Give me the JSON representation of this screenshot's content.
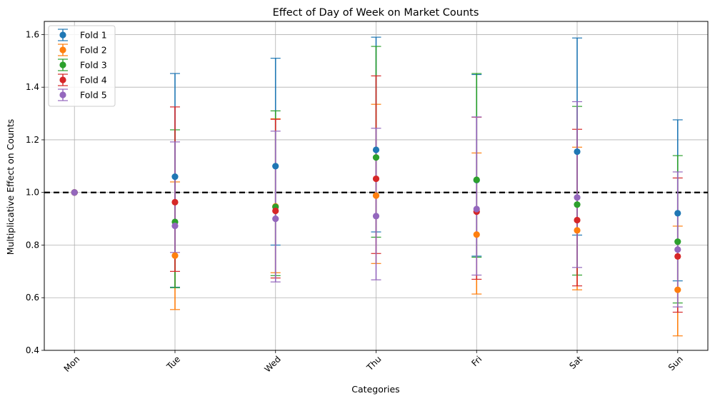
{
  "chart_data": {
    "type": "errorbar",
    "title": "Effect of Day of Week on Market Counts",
    "xlabel": "Categories",
    "ylabel": "Multiplicative Effect on Counts",
    "categories": [
      "Mon",
      "Tue",
      "Wed",
      "Thu",
      "Fri",
      "Sat",
      "Sun"
    ],
    "ylim": [
      0.4,
      1.65
    ],
    "yticks": [
      "0.4",
      "0.6",
      "0.8",
      "1.0",
      "1.2",
      "1.4",
      "1.6"
    ],
    "grid": true,
    "legend_position": "top-left",
    "reference_line": {
      "y": 1.0,
      "style": "dashed",
      "color": "#000000"
    },
    "series": [
      {
        "name": "Fold 1",
        "color": "#1f77b4",
        "values": [
          1.0,
          1.06,
          1.1,
          1.162,
          1.047,
          1.155,
          0.921
        ],
        "lower": [
          1.0,
          0.64,
          0.8,
          0.85,
          0.758,
          0.838,
          0.664
        ],
        "upper": [
          1.0,
          1.452,
          1.51,
          1.59,
          1.448,
          1.587,
          1.276
        ]
      },
      {
        "name": "Fold 2",
        "color": "#ff7f0e",
        "values": [
          1.0,
          0.76,
          0.947,
          0.988,
          0.84,
          0.856,
          0.63
        ],
        "lower": [
          1.0,
          0.555,
          0.695,
          0.73,
          0.614,
          0.63,
          0.455
        ],
        "upper": [
          1.0,
          1.04,
          1.28,
          1.335,
          1.15,
          1.172,
          0.872
        ]
      },
      {
        "name": "Fold 3",
        "color": "#2ca02c",
        "values": [
          1.0,
          0.888,
          0.945,
          1.133,
          1.048,
          0.954,
          0.813
        ],
        "lower": [
          1.0,
          0.638,
          0.684,
          0.83,
          0.754,
          0.686,
          0.58
        ],
        "upper": [
          1.0,
          1.238,
          1.31,
          1.555,
          1.452,
          1.327,
          1.14
        ]
      },
      {
        "name": "Fold 4",
        "color": "#d62728",
        "values": [
          1.0,
          0.963,
          0.93,
          1.052,
          0.927,
          0.895,
          0.757
        ],
        "lower": [
          1.0,
          0.7,
          0.675,
          0.768,
          0.67,
          0.645,
          0.545
        ],
        "upper": [
          1.0,
          1.325,
          1.278,
          1.443,
          1.286,
          1.24,
          1.055
        ]
      },
      {
        "name": "Fold 5",
        "color": "#9467bd",
        "values": [
          1.0,
          0.873,
          0.9,
          0.91,
          0.937,
          0.981,
          0.783
        ],
        "lower": [
          1.0,
          0.772,
          0.66,
          0.668,
          0.686,
          0.715,
          0.565
        ],
        "upper": [
          1.0,
          1.192,
          1.233,
          1.244,
          1.287,
          1.345,
          1.078
        ]
      }
    ]
  }
}
